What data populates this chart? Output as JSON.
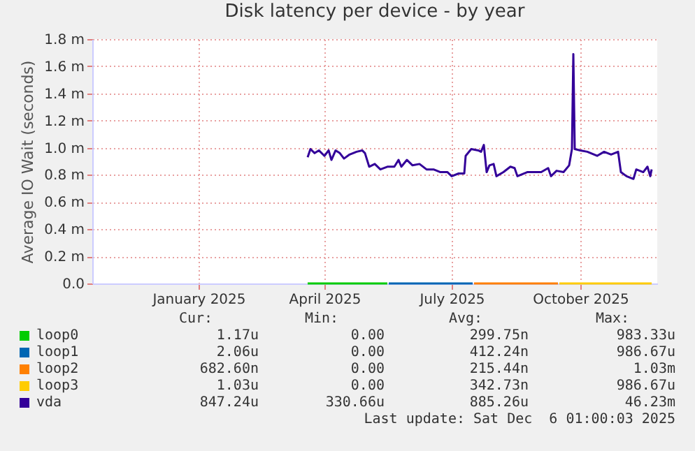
{
  "chart_data": {
    "type": "line",
    "title": "Disk latency per device - by year",
    "ylabel": "Average IO Wait (seconds)",
    "xlim": [
      "2024-11-01",
      "2025-12-10"
    ],
    "xticks": [
      {
        "value": "2025-01-16",
        "label": "January 2025"
      },
      {
        "value": "2025-04-16",
        "label": "April 2025"
      },
      {
        "value": "2025-07-16",
        "label": "July 2025"
      },
      {
        "value": "2025-10-16",
        "label": "October 2025"
      }
    ],
    "ylim": [
      0,
      1.8
    ],
    "yticks": [
      {
        "value": 0,
        "label": "0.0"
      },
      {
        "value": 0.2,
        "label": "0.2 m"
      },
      {
        "value": 0.4,
        "label": "0.4 m"
      },
      {
        "value": 0.6,
        "label": "0.6 m"
      },
      {
        "value": 0.8,
        "label": "0.8 m"
      },
      {
        "value": 1.0,
        "label": "1.0 m"
      },
      {
        "value": 1.2,
        "label": "1.2 m"
      },
      {
        "value": 1.4,
        "label": "1.4 m"
      },
      {
        "value": 1.6,
        "label": "1.6 m"
      },
      {
        "value": 1.8,
        "label": "1.8 m"
      }
    ],
    "grid": true,
    "legend": "bottom",
    "series": [
      {
        "name": "loop0",
        "color": "#00cc00",
        "x": [
          "2025-04-04",
          "2025-05-31"
        ],
        "values": [
          0,
          0
        ]
      },
      {
        "name": "loop1",
        "color": "#0066b3",
        "x": [
          "2025-06-01",
          "2025-07-31"
        ],
        "values": [
          0,
          0
        ]
      },
      {
        "name": "loop2",
        "color": "#ff8000",
        "x": [
          "2025-08-01",
          "2025-09-30"
        ],
        "values": [
          0,
          0
        ]
      },
      {
        "name": "loop3",
        "color": "#ffcc00",
        "x": [
          "2025-10-01",
          "2025-12-06"
        ],
        "values": [
          0,
          0
        ]
      },
      {
        "name": "vda",
        "color": "#330099",
        "x": [
          "2025-04-04",
          "2025-04-06",
          "2025-04-09",
          "2025-04-12",
          "2025-04-16",
          "2025-04-19",
          "2025-04-21",
          "2025-04-24",
          "2025-04-27",
          "2025-04-30",
          "2025-05-04",
          "2025-05-09",
          "2025-05-13",
          "2025-05-15",
          "2025-05-18",
          "2025-05-22",
          "2025-05-26",
          "2025-05-31",
          "2025-06-05",
          "2025-06-08",
          "2025-06-10",
          "2025-06-14",
          "2025-06-18",
          "2025-06-23",
          "2025-06-28",
          "2025-07-03",
          "2025-07-08",
          "2025-07-13",
          "2025-07-16",
          "2025-07-21",
          "2025-07-25",
          "2025-07-26",
          "2025-07-30",
          "2025-08-04",
          "2025-08-06",
          "2025-08-08",
          "2025-08-10",
          "2025-08-12",
          "2025-08-15",
          "2025-08-17",
          "2025-08-22",
          "2025-08-27",
          "2025-08-30",
          "2025-09-01",
          "2025-09-08",
          "2025-09-18",
          "2025-09-23",
          "2025-09-25",
          "2025-09-29",
          "2025-10-04",
          "2025-10-08",
          "2025-10-10",
          "2025-10-11",
          "2025-10-12",
          "2025-10-16",
          "2025-10-21",
          "2025-10-28",
          "2025-11-02",
          "2025-11-07",
          "2025-11-12",
          "2025-11-14",
          "2025-11-18",
          "2025-11-23",
          "2025-11-25",
          "2025-11-30",
          "2025-12-03",
          "2025-12-05",
          "2025-12-06"
        ],
        "values": [
          0.93,
          0.99,
          0.96,
          0.98,
          0.94,
          0.98,
          0.91,
          0.98,
          0.96,
          0.92,
          0.95,
          0.97,
          0.98,
          0.96,
          0.86,
          0.88,
          0.84,
          0.86,
          0.86,
          0.91,
          0.86,
          0.91,
          0.87,
          0.88,
          0.84,
          0.84,
          0.82,
          0.82,
          0.79,
          0.81,
          0.81,
          0.94,
          0.99,
          0.98,
          0.97,
          1.02,
          0.82,
          0.87,
          0.88,
          0.79,
          0.82,
          0.86,
          0.85,
          0.79,
          0.82,
          0.82,
          0.85,
          0.79,
          0.83,
          0.82,
          0.87,
          0.99,
          1.69,
          0.99,
          0.98,
          0.97,
          0.94,
          0.97,
          0.95,
          0.97,
          0.82,
          0.79,
          0.77,
          0.84,
          0.82,
          0.86,
          0.79,
          0.84
        ]
      }
    ],
    "annotations": [
      "Cur:",
      "Min:",
      "Avg:",
      "Max:",
      "1.17u",
      "0.00",
      "299.75n",
      "983.33u",
      "2.06u",
      "0.00",
      "412.24n",
      "986.67u",
      "682.60n",
      "0.00",
      "215.44n",
      "1.03m",
      "1.03u",
      "0.00",
      "342.73n",
      "986.67u",
      "847.24u",
      "330.66u",
      "885.26u",
      "46.23m",
      "Last update: Sat Dec  6 01:00:03 2025"
    ]
  }
}
